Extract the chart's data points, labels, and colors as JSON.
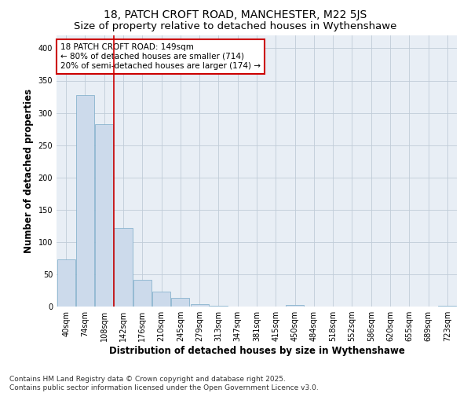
{
  "title_line1": "18, PATCH CROFT ROAD, MANCHESTER, M22 5JS",
  "title_line2": "Size of property relative to detached houses in Wythenshawe",
  "xlabel": "Distribution of detached houses by size in Wythenshawe",
  "ylabel": "Number of detached properties",
  "categories": [
    "40sqm",
    "74sqm",
    "108sqm",
    "142sqm",
    "176sqm",
    "210sqm",
    "245sqm",
    "279sqm",
    "313sqm",
    "347sqm",
    "381sqm",
    "415sqm",
    "450sqm",
    "484sqm",
    "518sqm",
    "552sqm",
    "586sqm",
    "620sqm",
    "655sqm",
    "689sqm",
    "723sqm"
  ],
  "values": [
    73,
    327,
    283,
    122,
    42,
    23,
    13,
    4,
    1,
    0,
    0,
    0,
    3,
    0,
    0,
    0,
    0,
    0,
    0,
    0,
    1
  ],
  "bar_color": "#ccdaeb",
  "bar_edge_color": "#7aaac8",
  "vline_x_index": 3,
  "vline_color": "#cc0000",
  "annotation_text": "18 PATCH CROFT ROAD: 149sqm\n← 80% of detached houses are smaller (714)\n20% of semi-detached houses are larger (174) →",
  "annotation_box_color": "#ffffff",
  "annotation_box_edge": "#cc0000",
  "ylim": [
    0,
    420
  ],
  "yticks": [
    0,
    50,
    100,
    150,
    200,
    250,
    300,
    350,
    400
  ],
  "plot_bg_color": "#e8eef5",
  "grid_color": "#c0ccd8",
  "footer_line1": "Contains HM Land Registry data © Crown copyright and database right 2025.",
  "footer_line2": "Contains public sector information licensed under the Open Government Licence v3.0.",
  "title_fontsize": 10,
  "subtitle_fontsize": 9.5,
  "axis_label_fontsize": 8.5,
  "tick_fontsize": 7,
  "annotation_fontsize": 7.5,
  "footer_fontsize": 6.5
}
